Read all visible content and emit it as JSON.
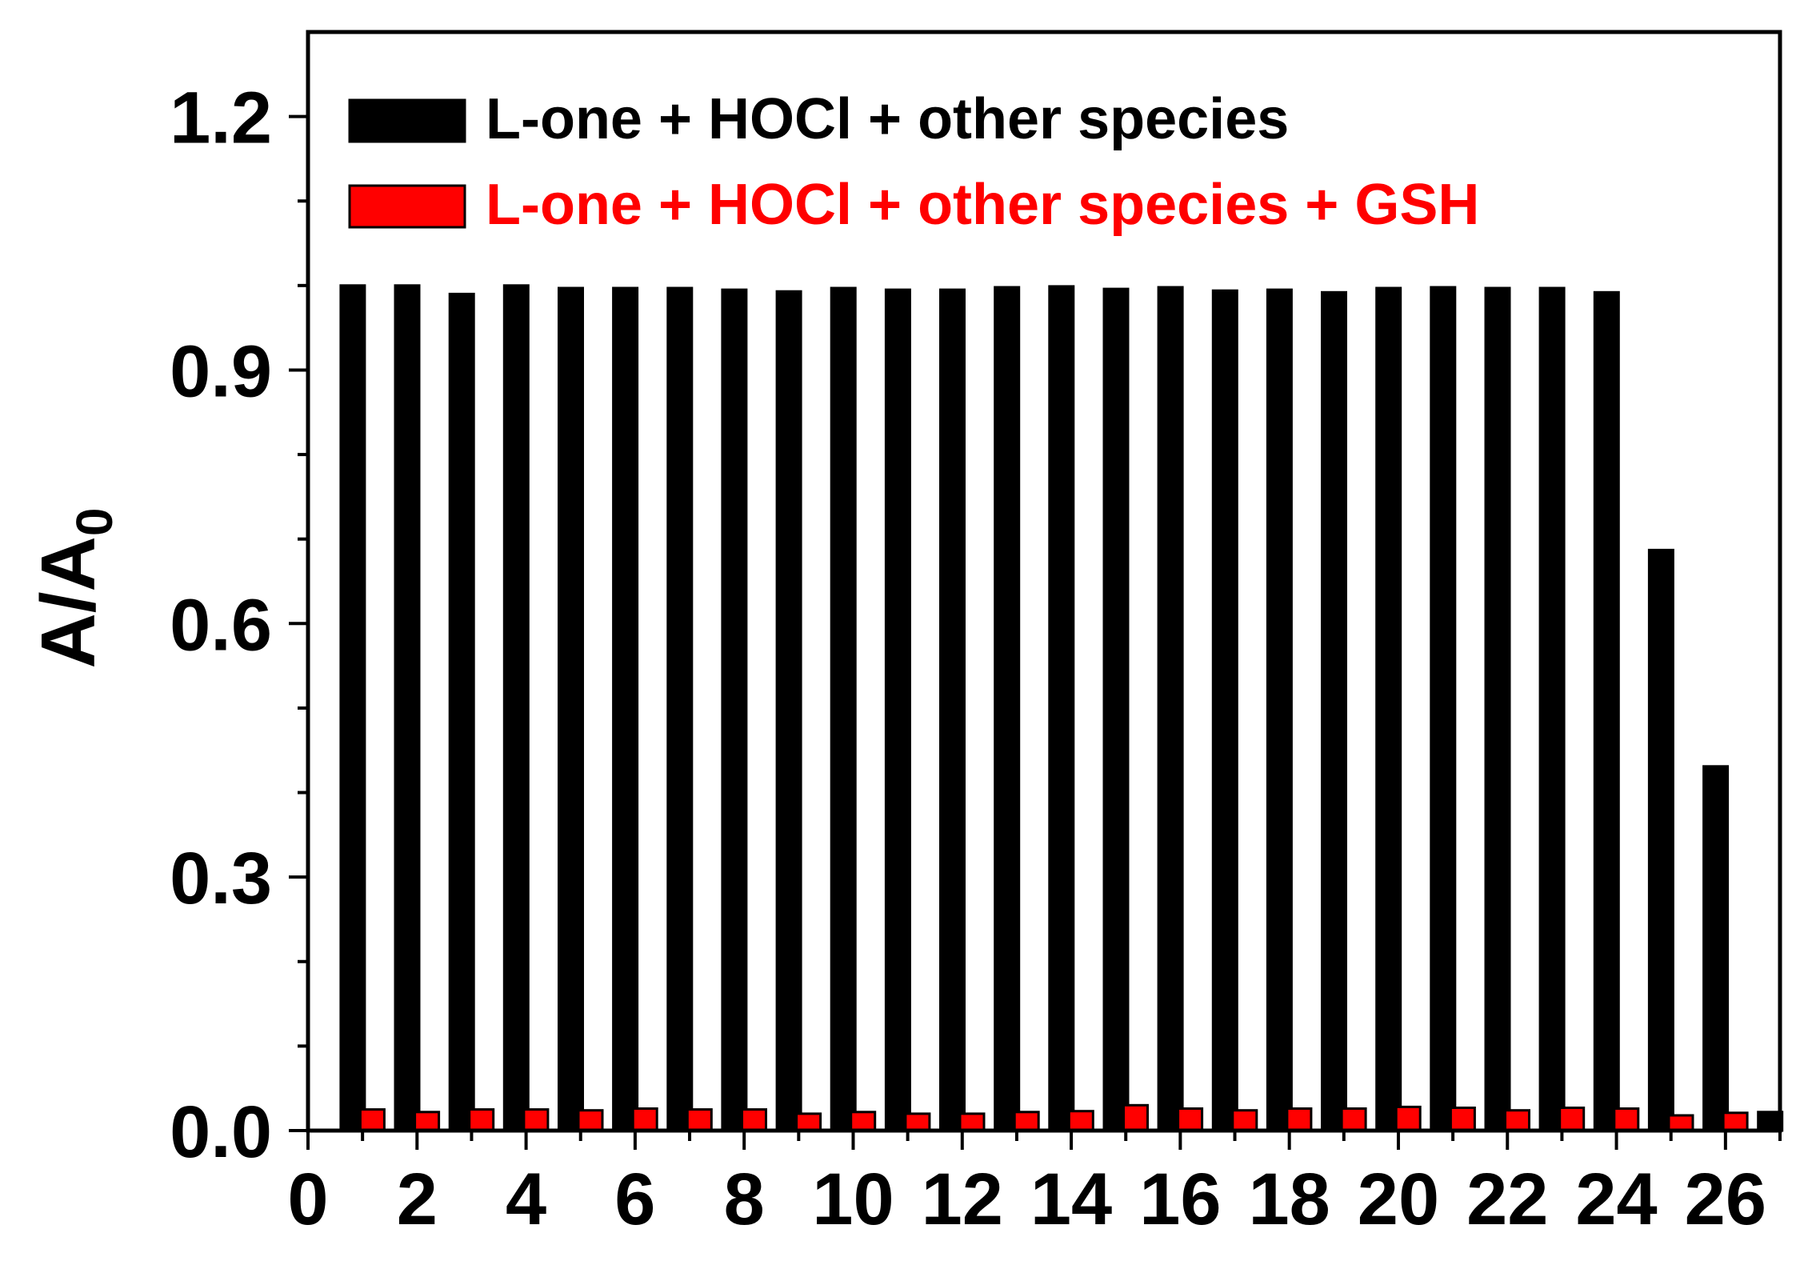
{
  "chart_data": {
    "type": "bar",
    "title": "",
    "xlabel": "",
    "ylabel": "A/A",
    "ylabel_subscript": "0",
    "xlim": [
      0,
      27
    ],
    "ylim": [
      0,
      1.3
    ],
    "x_ticks": [
      "0",
      "2",
      "4",
      "6",
      "8",
      "10",
      "12",
      "14",
      "16",
      "18",
      "20",
      "22",
      "24",
      "26"
    ],
    "y_ticks": [
      "0.0",
      "0.3",
      "0.6",
      "0.9",
      "1.2"
    ],
    "grid": false,
    "legend_position": "top-left",
    "categories": [
      1,
      2,
      3,
      4,
      5,
      6,
      7,
      8,
      9,
      10,
      11,
      12,
      13,
      14,
      15,
      16,
      17,
      18,
      19,
      20,
      21,
      22,
      23,
      24,
      25,
      26,
      27
    ],
    "series": [
      {
        "name": "L-one + HOCl + other species",
        "color": "#000000",
        "values": [
          1.0,
          1.0,
          0.99,
          1.0,
          0.997,
          0.997,
          0.997,
          0.995,
          0.993,
          0.997,
          0.995,
          0.995,
          0.998,
          0.999,
          0.996,
          0.998,
          0.994,
          0.995,
          0.992,
          0.997,
          0.998,
          0.997,
          0.997,
          0.992,
          0.687,
          0.431,
          0.022
        ]
      },
      {
        "name": "L-one + HOCl + other species + GSH",
        "color": "#ff0000",
        "values": [
          0.025,
          0.022,
          0.025,
          0.025,
          0.024,
          0.026,
          0.025,
          0.025,
          0.02,
          0.022,
          0.02,
          0.02,
          0.022,
          0.023,
          0.03,
          0.026,
          0.024,
          0.026,
          0.026,
          0.028,
          0.027,
          0.024,
          0.027,
          0.026,
          0.018,
          0.021,
          null
        ]
      }
    ]
  }
}
